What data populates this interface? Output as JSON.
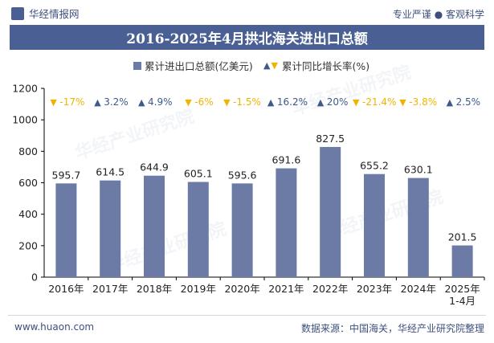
{
  "header": {
    "brand": "华经情报网",
    "slogan": "专业严谨 ● 客观科学"
  },
  "title": "2016-2025年4月拱北海关进出口总额",
  "legend": {
    "bar_label": "累计进出口总额(亿美元)",
    "growth_label": "累计同比增长率(%)"
  },
  "footer": {
    "website": "www.huaon.com",
    "source": "数据来源：中国海关，华经产业研究院整理"
  },
  "watermark": "华经产业研究院",
  "colors": {
    "bar": "#6c7ba5",
    "title_bg": "#4a5f94",
    "up": "#3d5a8a",
    "down": "#f0b400"
  },
  "chart_data": {
    "type": "bar",
    "categories": [
      "2016年",
      "2017年",
      "2018年",
      "2019年",
      "2020年",
      "2021年",
      "2022年",
      "2023年",
      "2024年",
      "2025年\n1-4月"
    ],
    "series": [
      {
        "name": "累计进出口总额(亿美元)",
        "values": [
          595.7,
          614.5,
          644.9,
          605.1,
          595.6,
          691.6,
          827.5,
          655.2,
          630.1,
          201.5
        ]
      },
      {
        "name": "累计同比增长率(%)",
        "values": [
          -17,
          3.2,
          4.9,
          -6,
          -1.5,
          16.2,
          20,
          -21.4,
          -3.8,
          2.5
        ],
        "labels": [
          "-17%",
          "3.2%",
          "4.9%",
          "-6%",
          "-1.5%",
          "16.2%",
          "20%",
          "-21.4%",
          "-3.8%",
          "2.5%"
        ]
      }
    ],
    "ylim": [
      0,
      1200
    ],
    "yticks": [
      0,
      200,
      400,
      600,
      800,
      1000,
      1200
    ],
    "grid": false,
    "legend_position": "top"
  }
}
